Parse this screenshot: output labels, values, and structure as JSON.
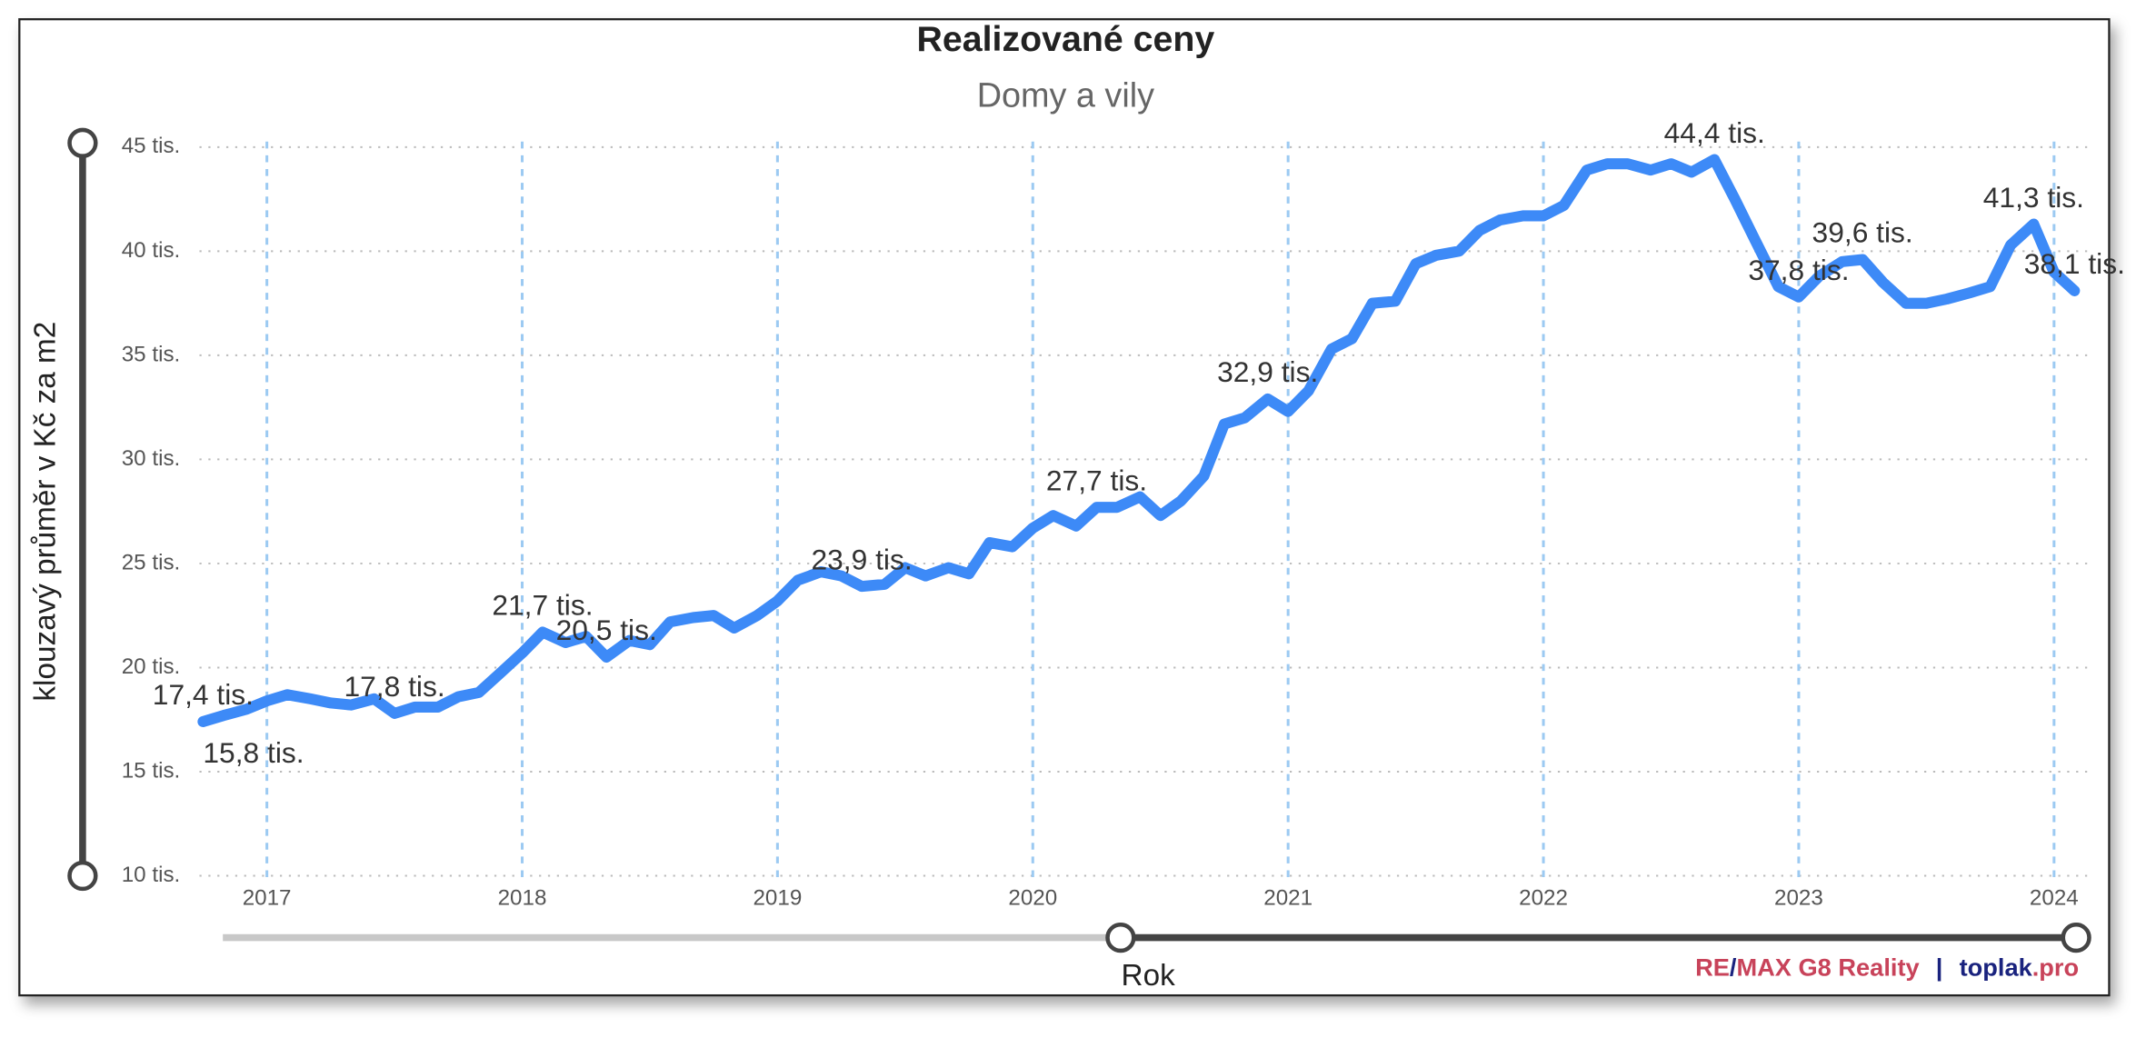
{
  "chart_data": {
    "type": "line",
    "title": "Realizované ceny",
    "subtitle": "Domy a vily",
    "y_label": "klouzavý průměr v Kč za m2",
    "x_label": "Rok",
    "branding": [
      "RE",
      "/",
      "MAX G8 Reality",
      "|",
      "toplak",
      ".pro"
    ],
    "xlim": [
      2016.75,
      2024.1
    ],
    "xticks": [
      2017,
      2018,
      2019,
      2020,
      2021,
      2022,
      2023,
      2024
    ],
    "ylim": [
      10000,
      45000
    ],
    "yticks": [
      {
        "value": 10000,
        "label": "10 tis."
      },
      {
        "value": 15000,
        "label": "15 tis."
      },
      {
        "value": 20000,
        "label": "20 tis."
      },
      {
        "value": 25000,
        "label": "25 tis."
      },
      {
        "value": 30000,
        "label": "30 tis."
      },
      {
        "value": 35000,
        "label": "35 tis."
      },
      {
        "value": 40000,
        "label": "40 tis."
      },
      {
        "value": 45000,
        "label": "45 tis."
      }
    ],
    "grid": true,
    "x": [
      2016.75,
      2016.83,
      2016.92,
      2017.0,
      2017.08,
      2017.17,
      2017.25,
      2017.33,
      2017.42,
      2017.5,
      2017.58,
      2017.67,
      2017.75,
      2017.83,
      2017.92,
      2018.0,
      2018.08,
      2018.17,
      2018.25,
      2018.33,
      2018.42,
      2018.5,
      2018.58,
      2018.67,
      2018.75,
      2018.83,
      2018.92,
      2019.0,
      2019.08,
      2019.17,
      2019.25,
      2019.33,
      2019.42,
      2019.5,
      2019.58,
      2019.67,
      2019.75,
      2019.83,
      2019.92,
      2020.0,
      2020.08,
      2020.17,
      2020.25,
      2020.33,
      2020.42,
      2020.5,
      2020.58,
      2020.67,
      2020.75,
      2020.83,
      2020.92,
      2021.0,
      2021.08,
      2021.17,
      2021.25,
      2021.33,
      2021.42,
      2021.5,
      2021.58,
      2021.67,
      2021.75,
      2021.83,
      2021.92,
      2022.0,
      2022.08,
      2022.17,
      2022.25,
      2022.33,
      2022.42,
      2022.5,
      2022.58,
      2022.67,
      2022.75,
      2022.83,
      2022.92,
      2023.0,
      2023.08,
      2023.17,
      2023.25,
      2023.33,
      2023.42,
      2023.5,
      2023.58,
      2023.67,
      2023.75,
      2023.83,
      2023.92,
      2024.0,
      2024.08
    ],
    "series": [
      {
        "name": "Domy a vily",
        "color": "#3d8af7",
        "values": [
          17400,
          17700,
          18000,
          18400,
          18700,
          18500,
          18300,
          18200,
          18500,
          17800,
          18100,
          18100,
          18600,
          18800,
          19800,
          20700,
          21700,
          21200,
          21500,
          20500,
          21300,
          21100,
          22200,
          22400,
          22500,
          21900,
          22500,
          23200,
          24200,
          24600,
          24400,
          23900,
          24000,
          24800,
          24400,
          24800,
          24500,
          26000,
          25800,
          26700,
          27300,
          26800,
          27700,
          27700,
          28200,
          27300,
          28000,
          29200,
          31700,
          32000,
          32900,
          32300,
          33300,
          35300,
          35800,
          37500,
          37600,
          39400,
          39800,
          40000,
          41000,
          41500,
          41700,
          41700,
          42200,
          43900,
          44200,
          44200,
          43900,
          44200,
          43800,
          44400,
          42500,
          40500,
          38300,
          37800,
          38800,
          39500,
          39600,
          38500,
          37500,
          37500,
          37700,
          38000,
          38300,
          40300,
          41300,
          39000,
          38100
        ],
        "value_labels": [
          "17,4 tis.",
          null,
          null,
          null,
          null,
          null,
          null,
          null,
          null,
          "17,8 tis.",
          null,
          null,
          null,
          null,
          null,
          null,
          "21,7 tis.",
          null,
          null,
          "20,5 tis.",
          null,
          null,
          null,
          null,
          null,
          null,
          null,
          null,
          null,
          null,
          null,
          "23,9 tis.",
          null,
          null,
          null,
          null,
          null,
          null,
          null,
          null,
          null,
          null,
          "27,7 tis.",
          null,
          null,
          null,
          null,
          null,
          null,
          null,
          "32,9 tis.",
          null,
          null,
          null,
          null,
          null,
          null,
          null,
          null,
          null,
          null,
          null,
          null,
          null,
          null,
          null,
          null,
          null,
          null,
          null,
          null,
          "44,4 tis.",
          null,
          null,
          null,
          "37,8 tis.",
          null,
          null,
          "39,6 tis.",
          null,
          null,
          null,
          null,
          null,
          null,
          null,
          "41,3 tis.",
          null,
          "38,1 tis."
        ]
      }
    ],
    "annotations": [
      {
        "text": "15,8 tis.",
        "x": 2016.75,
        "y": 15800
      }
    ]
  }
}
